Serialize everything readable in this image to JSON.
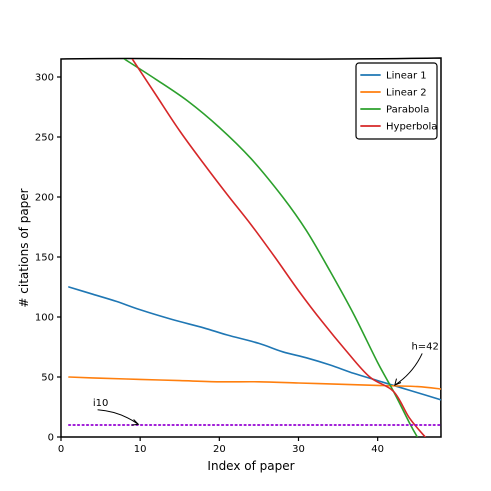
{
  "chart_data": {
    "type": "line",
    "title": "",
    "xlabel": "Index of paper",
    "ylabel": "# citations of paper",
    "xlim": [
      0,
      48
    ],
    "ylim": [
      0,
      315
    ],
    "xticks": [
      0,
      10,
      20,
      30,
      40
    ],
    "yticks": [
      0,
      50,
      100,
      150,
      200,
      250,
      300
    ],
    "grid": false,
    "legend_position": "top-right",
    "style": "xkcd",
    "series": [
      {
        "name": "Linear 1",
        "color": "#1f77b4",
        "x": [
          1,
          4,
          7,
          10,
          14,
          18,
          21,
          25,
          28,
          31,
          34,
          37,
          40,
          43,
          46,
          48
        ],
        "y": [
          125,
          119,
          113,
          106,
          98,
          91,
          85,
          78,
          71,
          66,
          60,
          53,
          47,
          41,
          35,
          31
        ]
      },
      {
        "name": "Linear 2",
        "color": "#ff7f0e",
        "x": [
          1,
          5,
          10,
          15,
          20,
          25,
          30,
          35,
          40,
          45,
          48
        ],
        "y": [
          50,
          49,
          48,
          47,
          46,
          46,
          45,
          44,
          43,
          42,
          40
        ]
      },
      {
        "name": "Parabola",
        "color": "#2ca02c",
        "x": [
          8,
          12,
          16,
          20,
          24,
          28,
          31,
          34,
          37,
          40,
          42,
          44,
          45
        ],
        "y": [
          315,
          298,
          280,
          258,
          232,
          200,
          172,
          138,
          102,
          62,
          38,
          12,
          0
        ]
      },
      {
        "name": "Hyperbola",
        "color": "#d62728",
        "x": [
          9,
          12,
          15,
          18,
          21,
          24,
          27,
          30,
          33,
          36,
          39,
          42,
          44,
          46
        ],
        "y": [
          315,
          285,
          255,
          228,
          202,
          177,
          150,
          122,
          96,
          72,
          50,
          38,
          16,
          0
        ]
      },
      {
        "name": "",
        "color": "#9400d3",
        "dashed": true,
        "x": [
          1,
          48
        ],
        "y": [
          10,
          10
        ]
      }
    ],
    "annotations": [
      {
        "text": "h=42",
        "point": [
          42,
          42
        ],
        "text_at": [
          46,
          73
        ]
      },
      {
        "text": "i10",
        "point": [
          10,
          10
        ],
        "text_at": [
          5,
          26
        ]
      }
    ]
  }
}
